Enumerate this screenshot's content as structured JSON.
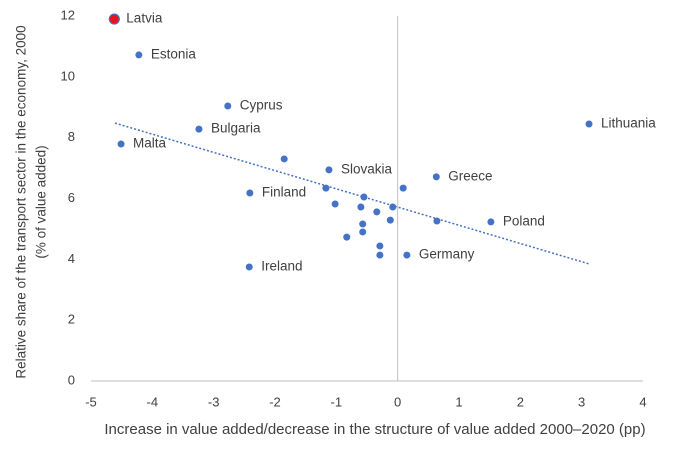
{
  "chart_data": {
    "type": "scatter",
    "x_label": "Increase in value added/decrease in the structure of value added 2000–2020 (pp)",
    "y_label": [
      "Relative share of the transport sector in the economy, 2000",
      "(% of value added)"
    ],
    "xlim": [
      -5,
      4
    ],
    "xticks": [
      -5,
      -4,
      -3,
      -2,
      -1,
      0,
      1,
      2,
      3,
      4
    ],
    "ylim": [
      0,
      12
    ],
    "yticks": [
      0,
      2,
      4,
      6,
      8,
      10,
      12
    ],
    "series": [
      {
        "color": "#e8141b",
        "edge": "#4472c4",
        "x": [
          -4.62
        ],
        "y": [
          11.9
        ],
        "labels": [
          "Latvia"
        ]
      },
      {
        "color": "#4472c4",
        "x": [
          -4.22,
          -2.77,
          -3.24,
          -4.51,
          3.12,
          -1.12,
          0.63,
          -2.41,
          1.52,
          -2.42,
          0.15,
          -1.85,
          -1.17,
          -0.55,
          0.09,
          -1.02,
          -0.6,
          -0.34,
          -0.08,
          0.64,
          -0.12,
          -0.57,
          -0.57,
          -0.83,
          -0.29,
          -0.29
        ],
        "y": [
          10.72,
          9.04,
          8.28,
          7.79,
          8.45,
          6.94,
          6.71,
          6.18,
          5.23,
          3.75,
          4.14,
          7.3,
          6.34,
          6.05,
          6.34,
          5.82,
          5.72,
          5.56,
          5.72,
          5.26,
          5.29,
          5.16,
          4.9,
          4.73,
          4.44,
          4.14
        ],
        "labels": [
          "Estonia",
          "Cyprus",
          "Bulgaria",
          "Malta",
          "Lithuania",
          "Slovakia",
          "Greece",
          "Finland",
          "Poland",
          "Ireland",
          "Germany",
          null,
          null,
          null,
          null,
          null,
          null,
          null,
          null,
          null,
          null,
          null,
          null,
          null,
          null,
          null
        ]
      }
    ],
    "trendline": {
      "color": "#4472c4",
      "x": [
        -4.61,
        3.12
      ],
      "y": [
        8.48,
        3.85
      ]
    }
  }
}
